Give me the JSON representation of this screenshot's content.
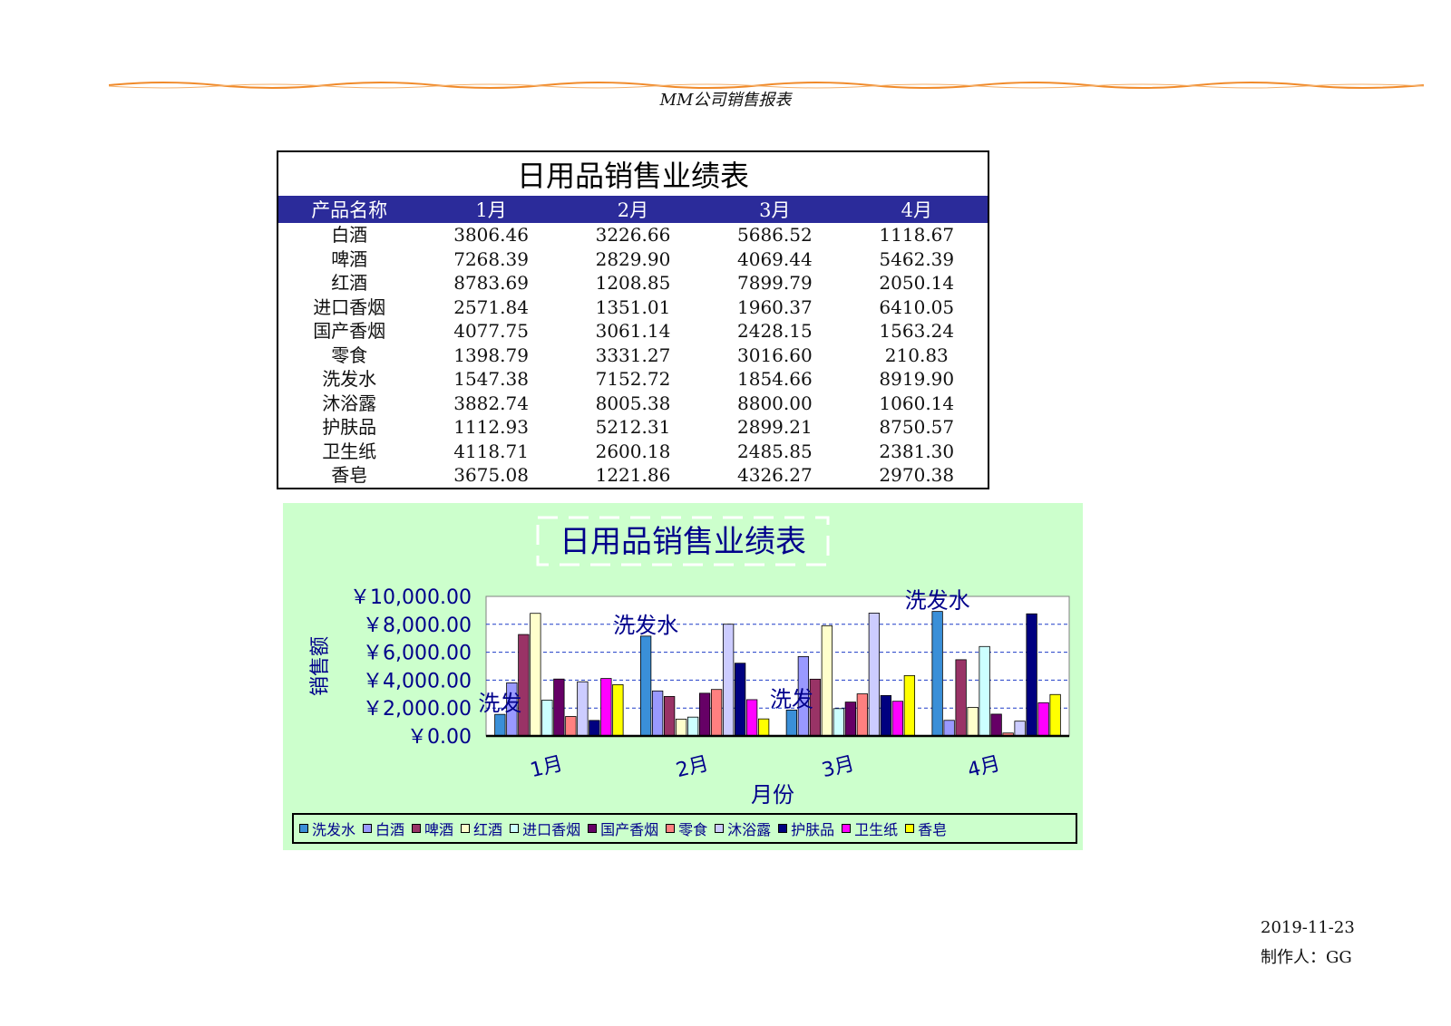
{
  "page": {
    "header_title": "MM公司销售报表",
    "footer_date": "2019-11-23",
    "footer_author": "制作人：GG"
  },
  "table": {
    "title": "日用品销售业绩表",
    "columns": [
      "产品名称",
      "1月",
      "2月",
      "3月",
      "4月"
    ],
    "rows": [
      [
        "白酒",
        "3806.46",
        "3226.66",
        "5686.52",
        "1118.67"
      ],
      [
        "啤酒",
        "7268.39",
        "2829.90",
        "4069.44",
        "5462.39"
      ],
      [
        "红酒",
        "8783.69",
        "1208.85",
        "7899.79",
        "2050.14"
      ],
      [
        "进口香烟",
        "2571.84",
        "1351.01",
        "1960.37",
        "6410.05"
      ],
      [
        "国产香烟",
        "4077.75",
        "3061.14",
        "2428.15",
        "1563.24"
      ],
      [
        "零食",
        "1398.79",
        "3331.27",
        "3016.60",
        "210.83"
      ],
      [
        "洗发水",
        "1547.38",
        "7152.72",
        "1854.66",
        "8919.90"
      ],
      [
        "沐浴露",
        "3882.74",
        "8005.38",
        "8800.00",
        "1060.14"
      ],
      [
        "护肤品",
        "1112.93",
        "5212.31",
        "2899.21",
        "8750.57"
      ],
      [
        "卫生纸",
        "4118.71",
        "2600.18",
        "2485.85",
        "2381.30"
      ],
      [
        "香皂",
        "3675.08",
        "1221.86",
        "4326.27",
        "2970.38"
      ]
    ]
  },
  "chart_data": {
    "type": "bar",
    "title": "日用品销售业绩表",
    "xlabel": "月份",
    "ylabel": "销售额",
    "categories": [
      "1月",
      "2月",
      "3月",
      "4月"
    ],
    "ylim": [
      0,
      10000
    ],
    "yticks": [
      "￥0.00",
      "￥2,000.00",
      "￥4,000.00",
      "￥6,000.00",
      "￥8,000.00",
      "￥10,000.00"
    ],
    "grid": true,
    "legend": "bottom",
    "series": [
      {
        "name": "洗发水",
        "color": "#3a8fd8",
        "values": [
          1547.38,
          7152.72,
          1854.66,
          8919.9
        ]
      },
      {
        "name": "白酒",
        "color": "#9999ff",
        "values": [
          3806.46,
          3226.66,
          5686.52,
          1118.67
        ]
      },
      {
        "name": "啤酒",
        "color": "#993366",
        "values": [
          7268.39,
          2829.9,
          4069.44,
          5462.39
        ]
      },
      {
        "name": "红酒",
        "color": "#ffffcc",
        "values": [
          8783.69,
          1208.85,
          7899.79,
          2050.14
        ]
      },
      {
        "name": "进口香烟",
        "color": "#ccffff",
        "values": [
          2571.84,
          1351.01,
          1960.37,
          6410.05
        ]
      },
      {
        "name": "国产香烟",
        "color": "#660066",
        "values": [
          4077.75,
          3061.14,
          2428.15,
          1563.24
        ]
      },
      {
        "name": "零食",
        "color": "#ff8080",
        "values": [
          1398.79,
          3331.27,
          3016.6,
          210.83
        ]
      },
      {
        "name": "沐浴露",
        "color": "#ccccff",
        "values": [
          3882.74,
          8005.38,
          8800.0,
          1060.14
        ]
      },
      {
        "name": "护肤品",
        "color": "#000080",
        "values": [
          1112.93,
          5212.31,
          2899.21,
          8750.57
        ]
      },
      {
        "name": "卫生纸",
        "color": "#ff00ff",
        "values": [
          4118.71,
          2600.18,
          2485.85,
          2381.3
        ]
      },
      {
        "name": "香皂",
        "color": "#ffff00",
        "values": [
          3675.08,
          1221.86,
          4326.27,
          2970.38
        ]
      }
    ],
    "annotations": [
      "洗发",
      "洗发水",
      "洗发",
      "洗发水"
    ]
  }
}
